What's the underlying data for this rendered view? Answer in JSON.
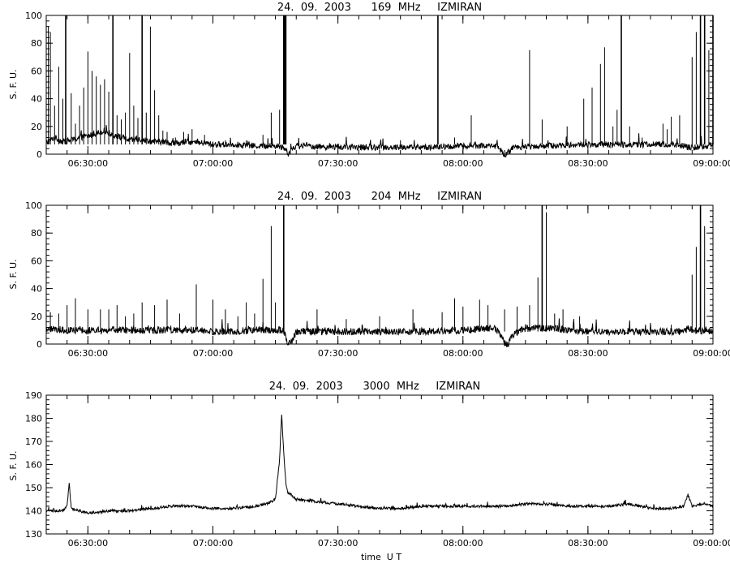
{
  "chart_data": [
    {
      "type": "line",
      "title": "24.  09.  2003      169  MHz     IZMIRAN",
      "xlabel": "",
      "ylabel": "S. F. U.",
      "x_range": [
        "06:20:00",
        "09:00:00"
      ],
      "ylim": [
        0,
        100
      ],
      "xticks": [
        "06:30:00",
        "07:00:00",
        "07:30:00",
        "08:00:00",
        "08:30:00",
        "09:00:00"
      ],
      "yticks": [
        "0",
        "20",
        "40",
        "60",
        "80",
        "100"
      ],
      "grid": false,
      "baseline": 7,
      "series": [
        {
          "points": [
            [
              "06:20:00",
              8
            ],
            [
              "06:22:00",
              12
            ],
            [
              "06:24:00",
              9
            ],
            [
              "06:26:00",
              10
            ],
            [
              "06:28:00",
              12
            ],
            [
              "06:30:00",
              13
            ],
            [
              "06:32:00",
              15
            ],
            [
              "06:34:00",
              17
            ],
            [
              "06:36:00",
              14
            ],
            [
              "06:38:00",
              12
            ],
            [
              "06:40:00",
              10
            ],
            [
              "06:42:00",
              11
            ],
            [
              "06:44:00",
              10
            ],
            [
              "06:46:00",
              9
            ],
            [
              "06:48:00",
              9
            ],
            [
              "06:50:00",
              8
            ],
            [
              "06:52:00",
              8
            ],
            [
              "06:54:00",
              9
            ],
            [
              "06:56:00",
              8
            ],
            [
              "06:58:00",
              8
            ],
            [
              "07:00:00",
              7
            ],
            [
              "07:05:00",
              7
            ],
            [
              "07:10:00",
              6
            ],
            [
              "07:15:00",
              6
            ],
            [
              "07:17:00",
              5
            ],
            [
              "07:18:00",
              0
            ],
            [
              "07:19:00",
              4
            ],
            [
              "07:20:00",
              6
            ],
            [
              "07:30:00",
              5
            ],
            [
              "07:40:00",
              5
            ],
            [
              "07:50:00",
              5
            ],
            [
              "07:54:00",
              5
            ],
            [
              "08:00:00",
              6
            ],
            [
              "08:05:00",
              6
            ],
            [
              "08:08:00",
              6
            ],
            [
              "08:09:00",
              3
            ],
            [
              "08:10:00",
              -2
            ],
            [
              "08:11:00",
              2
            ],
            [
              "08:12:00",
              5
            ],
            [
              "08:20:00",
              6
            ],
            [
              "08:30:00",
              7
            ],
            [
              "08:40:00",
              7
            ],
            [
              "08:50:00",
              7
            ],
            [
              "08:53:00",
              6
            ],
            [
              "08:54:00",
              5
            ],
            [
              "08:55:00",
              5
            ],
            [
              "09:00:00",
              6
            ]
          ]
        }
      ],
      "spikes": [
        [
          "06:20:30",
          92
        ],
        [
          "06:21:00",
          88
        ],
        [
          "06:22:00",
          35
        ],
        [
          "06:23:00",
          63
        ],
        [
          "06:24:00",
          40
        ],
        [
          "06:24:40",
          100
        ],
        [
          "06:26:00",
          44
        ],
        [
          "06:27:00",
          22
        ],
        [
          "06:28:00",
          35
        ],
        [
          "06:29:00",
          48
        ],
        [
          "06:30:00",
          74
        ],
        [
          "06:31:00",
          60
        ],
        [
          "06:32:00",
          56
        ],
        [
          "06:33:00",
          50
        ],
        [
          "06:34:00",
          54
        ],
        [
          "06:35:00",
          45
        ],
        [
          "06:36:00",
          100
        ],
        [
          "06:37:00",
          28
        ],
        [
          "06:38:00",
          25
        ],
        [
          "06:39:00",
          30
        ],
        [
          "06:40:00",
          73
        ],
        [
          "06:41:00",
          35
        ],
        [
          "06:42:00",
          26
        ],
        [
          "06:43:00",
          100
        ],
        [
          "06:44:00",
          30
        ],
        [
          "06:45:00",
          92
        ],
        [
          "06:46:00",
          46
        ],
        [
          "06:47:00",
          28
        ],
        [
          "06:48:00",
          17
        ],
        [
          "06:49:00",
          16
        ],
        [
          "06:51:00",
          12
        ],
        [
          "06:53:00",
          16
        ],
        [
          "06:55:00",
          18
        ],
        [
          "06:58:00",
          14
        ],
        [
          "07:03:00",
          10
        ],
        [
          "07:08:00",
          10
        ],
        [
          "07:12:00",
          14
        ],
        [
          "07:14:00",
          30
        ],
        [
          "07:16:00",
          32
        ],
        [
          "07:17:00",
          100
        ],
        [
          "07:17:10",
          100
        ],
        [
          "07:17:20",
          100
        ],
        [
          "07:17:30",
          100
        ],
        [
          "07:28:00",
          8
        ],
        [
          "07:45:00",
          10
        ],
        [
          "07:54:00",
          100
        ],
        [
          "07:58:00",
          12
        ],
        [
          "08:02:00",
          28
        ],
        [
          "08:16:00",
          75
        ],
        [
          "08:19:00",
          25
        ],
        [
          "08:25:00",
          20
        ],
        [
          "08:29:00",
          40
        ],
        [
          "08:31:00",
          48
        ],
        [
          "08:33:00",
          65
        ],
        [
          "08:34:00",
          77
        ],
        [
          "08:36:00",
          20
        ],
        [
          "08:37:00",
          32
        ],
        [
          "08:38:00",
          100
        ],
        [
          "08:40:00",
          20
        ],
        [
          "08:43:00",
          12
        ],
        [
          "08:48:00",
          22
        ],
        [
          "08:49:00",
          18
        ],
        [
          "08:50:00",
          27
        ],
        [
          "08:52:00",
          28
        ],
        [
          "08:55:00",
          70
        ],
        [
          "08:56:00",
          88
        ],
        [
          "08:57:00",
          100
        ],
        [
          "08:58:00",
          100
        ],
        [
          "08:59:00",
          75
        ],
        [
          "09:00:00",
          100
        ]
      ],
      "noise": 2.2
    },
    {
      "type": "line",
      "title": "24.  09.  2003      204  MHz     IZMIRAN",
      "xlabel": "",
      "ylabel": "S. F. U.",
      "x_range": [
        "06:20:00",
        "09:00:00"
      ],
      "ylim": [
        0,
        100
      ],
      "xticks": [
        "06:30:00",
        "07:00:00",
        "07:30:00",
        "08:00:00",
        "08:30:00",
        "09:00:00"
      ],
      "yticks": [
        "0",
        "20",
        "40",
        "60",
        "80",
        "100"
      ],
      "grid": false,
      "baseline": 9,
      "series": [
        {
          "points": [
            [
              "06:20:00",
              11
            ],
            [
              "06:25:00",
              10
            ],
            [
              "06:30:00",
              10
            ],
            [
              "06:35:00",
              10
            ],
            [
              "06:40:00",
              10
            ],
            [
              "06:45:00",
              10
            ],
            [
              "06:50:00",
              10
            ],
            [
              "06:55:00",
              10
            ],
            [
              "07:00:00",
              9
            ],
            [
              "07:05:00",
              9
            ],
            [
              "07:10:00",
              10
            ],
            [
              "07:15:00",
              10
            ],
            [
              "07:17:00",
              10
            ],
            [
              "07:18:00",
              0
            ],
            [
              "07:19:00",
              2
            ],
            [
              "07:20:00",
              9
            ],
            [
              "07:30:00",
              9
            ],
            [
              "07:40:00",
              9
            ],
            [
              "07:50:00",
              9
            ],
            [
              "08:00:00",
              10
            ],
            [
              "08:05:00",
              11
            ],
            [
              "08:08:00",
              11
            ],
            [
              "08:09:00",
              6
            ],
            [
              "08:10:00",
              0
            ],
            [
              "08:11:00",
              0
            ],
            [
              "08:12:00",
              7
            ],
            [
              "08:15:00",
              11
            ],
            [
              "08:20:00",
              12
            ],
            [
              "08:25:00",
              10
            ],
            [
              "08:30:00",
              9
            ],
            [
              "08:40:00",
              9
            ],
            [
              "08:50:00",
              9
            ],
            [
              "08:53:00",
              9
            ],
            [
              "08:54:00",
              11
            ],
            [
              "08:55:00",
              10
            ],
            [
              "09:00:00",
              9
            ]
          ]
        }
      ],
      "spikes": [
        [
          "06:21:00",
          23
        ],
        [
          "06:23:00",
          22
        ],
        [
          "06:25:00",
          28
        ],
        [
          "06:27:00",
          33
        ],
        [
          "06:30:00",
          25
        ],
        [
          "06:33:00",
          25
        ],
        [
          "06:35:00",
          25
        ],
        [
          "06:37:00",
          28
        ],
        [
          "06:39:00",
          20
        ],
        [
          "06:41:00",
          22
        ],
        [
          "06:43:00",
          30
        ],
        [
          "06:46:00",
          28
        ],
        [
          "06:49:00",
          32
        ],
        [
          "06:52:00",
          22
        ],
        [
          "06:56:00",
          43
        ],
        [
          "07:00:00",
          32
        ],
        [
          "07:03:00",
          25
        ],
        [
          "07:06:00",
          20
        ],
        [
          "07:08:00",
          30
        ],
        [
          "07:10:00",
          22
        ],
        [
          "07:12:00",
          47
        ],
        [
          "07:14:00",
          85
        ],
        [
          "07:15:00",
          30
        ],
        [
          "07:17:00",
          100
        ],
        [
          "07:25:00",
          25
        ],
        [
          "07:32:00",
          18
        ],
        [
          "07:40:00",
          20
        ],
        [
          "07:48:00",
          25
        ],
        [
          "07:55:00",
          23
        ],
        [
          "07:58:00",
          33
        ],
        [
          "08:00:00",
          27
        ],
        [
          "08:04:00",
          32
        ],
        [
          "08:06:00",
          28
        ],
        [
          "08:10:00",
          25
        ],
        [
          "08:13:00",
          27
        ],
        [
          "08:16:00",
          28
        ],
        [
          "08:18:00",
          48
        ],
        [
          "08:19:00",
          100
        ],
        [
          "08:20:00",
          95
        ],
        [
          "08:22:00",
          22
        ],
        [
          "08:24:00",
          25
        ],
        [
          "08:28:00",
          20
        ],
        [
          "08:32:00",
          15
        ],
        [
          "08:40:00",
          15
        ],
        [
          "08:50:00",
          14
        ],
        [
          "08:55:00",
          50
        ],
        [
          "08:56:00",
          70
        ],
        [
          "08:57:00",
          100
        ],
        [
          "08:58:00",
          85
        ]
      ],
      "noise": 2.6
    },
    {
      "type": "line",
      "title": "24.  09.  2003      3000  MHz     IZMIRAN",
      "xlabel": "time  U T",
      "ylabel": "S. F. U.",
      "x_range": [
        "06:20:00",
        "09:00:00"
      ],
      "ylim": [
        130,
        190
      ],
      "xticks": [
        "06:30:00",
        "07:00:00",
        "07:30:00",
        "08:00:00",
        "08:30:00",
        "09:00:00"
      ],
      "yticks": [
        "130",
        "140",
        "150",
        "160",
        "170",
        "180",
        "190"
      ],
      "grid": false,
      "series": [
        {
          "points": [
            [
              "06:20:00",
              140
            ],
            [
              "06:24:00",
              140
            ],
            [
              "06:25:00",
              142
            ],
            [
              "06:25:30",
              152
            ],
            [
              "06:26:00",
              141
            ],
            [
              "06:28:00",
              140
            ],
            [
              "06:30:00",
              139
            ],
            [
              "06:35:00",
              140
            ],
            [
              "06:40:00",
              140
            ],
            [
              "06:45:00",
              141
            ],
            [
              "06:50:00",
              142
            ],
            [
              "06:55:00",
              142
            ],
            [
              "07:00:00",
              141
            ],
            [
              "07:05:00",
              141
            ],
            [
              "07:10:00",
              142
            ],
            [
              "07:13:00",
              143
            ],
            [
              "07:15:00",
              145
            ],
            [
              "07:16:00",
              162
            ],
            [
              "07:16:30",
              182
            ],
            [
              "07:17:00",
              165
            ],
            [
              "07:17:30",
              152
            ],
            [
              "07:18:00",
              148
            ],
            [
              "07:20:00",
              145
            ],
            [
              "07:25:00",
              144
            ],
            [
              "07:30:00",
              143
            ],
            [
              "07:35:00",
              142
            ],
            [
              "07:40:00",
              141
            ],
            [
              "07:45:00",
              141
            ],
            [
              "07:50:00",
              142
            ],
            [
              "07:55:00",
              142
            ],
            [
              "08:00:00",
              142
            ],
            [
              "08:05:00",
              142
            ],
            [
              "08:10:00",
              142
            ],
            [
              "08:15:00",
              143
            ],
            [
              "08:20:00",
              143
            ],
            [
              "08:25:00",
              142
            ],
            [
              "08:30:00",
              142
            ],
            [
              "08:35:00",
              142
            ],
            [
              "08:40:00",
              143
            ],
            [
              "08:45:00",
              141
            ],
            [
              "08:50:00",
              141
            ],
            [
              "08:53:00",
              142
            ],
            [
              "08:54:00",
              147
            ],
            [
              "08:55:00",
              142
            ],
            [
              "08:58:00",
              143
            ],
            [
              "09:00:00",
              142
            ]
          ]
        }
      ],
      "spikes": [],
      "noise": 0.6
    }
  ]
}
